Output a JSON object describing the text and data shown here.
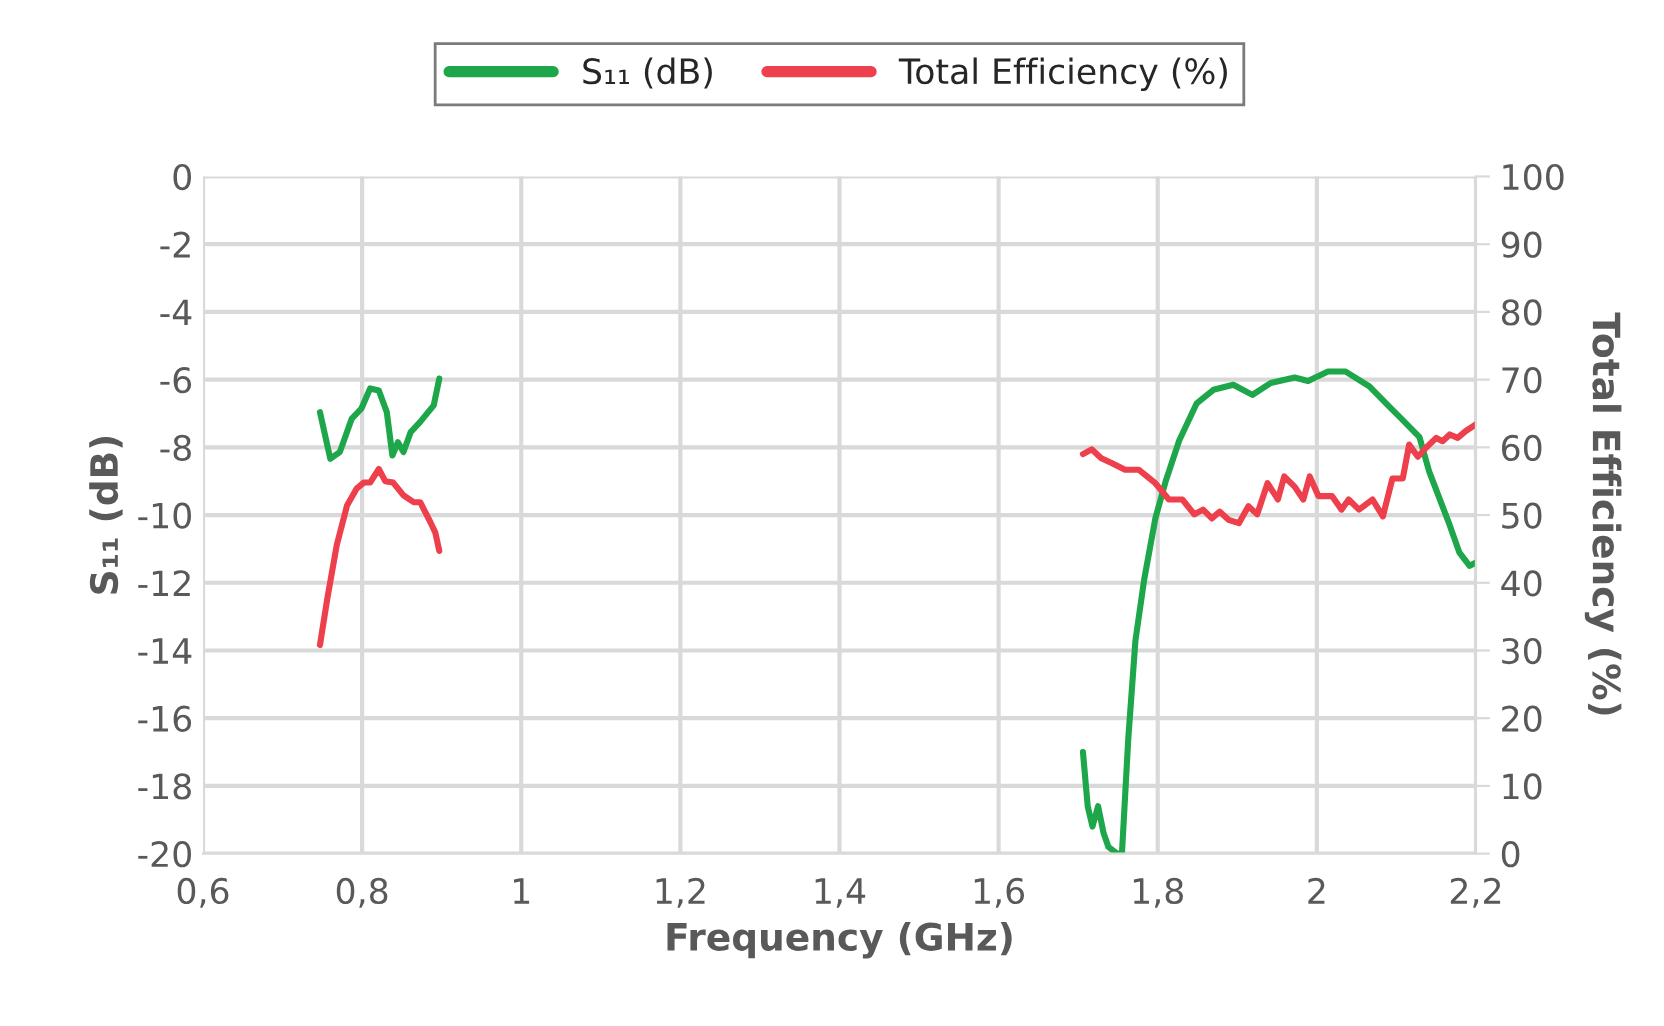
{
  "chart_data": {
    "type": "line",
    "xlabel": "Frequency (GHz)",
    "ylabel": "S₁₁ (dB)",
    "y2label": "Total Efficiency (%)",
    "xlim": [
      0.6,
      2.2
    ],
    "xticks": [
      {
        "value": 0.6,
        "label": "0,6"
      },
      {
        "value": 0.8,
        "label": "0,8"
      },
      1,
      {
        "value": 1.2,
        "label": "1,2"
      },
      {
        "value": 1.4,
        "label": "1,4"
      },
      {
        "value": 1.6,
        "label": "1,6"
      },
      {
        "value": 1.8,
        "label": "1,8"
      },
      2,
      {
        "value": 2.2,
        "label": "2,2"
      }
    ],
    "ylim": [
      -20,
      0
    ],
    "yticks": [
      -20,
      -18,
      -16,
      -14,
      -12,
      -10,
      -8,
      -6,
      -4,
      -2,
      0
    ],
    "y2lim": [
      0,
      100
    ],
    "y2ticks": [
      0,
      10,
      20,
      30,
      40,
      50,
      60,
      70,
      80,
      90,
      100
    ],
    "grid": true,
    "legend": "top",
    "marker": "none",
    "line_style": "solid",
    "series": [
      {
        "name": "S₁₁ (dB)",
        "color": "#1ea64b",
        "x": [
          0.747,
          0.76,
          0.772,
          0.787,
          0.799,
          0.81,
          0.821,
          0.831,
          0.838,
          0.845,
          0.852,
          0.861,
          0.873,
          0.883,
          0.89,
          0.897,
          null,
          1.706,
          1.712,
          1.718,
          1.725,
          1.732,
          1.738,
          1.749,
          1.755,
          1.763,
          1.772,
          1.783,
          1.797,
          1.81,
          1.827,
          1.849,
          1.87,
          1.895,
          1.919,
          1.942,
          1.972,
          1.989,
          2.014,
          2.036,
          2.066,
          2.091,
          2.104,
          2.129,
          2.141,
          2.154,
          2.167,
          2.179,
          2.192,
          2.2
        ],
        "values": [
          -6.96,
          -8.34,
          -8.14,
          -7.15,
          -6.86,
          -6.26,
          -6.32,
          -6.96,
          -8.24,
          -7.85,
          -8.14,
          -7.55,
          -7.25,
          -6.96,
          -6.76,
          -5.97,
          null,
          -17.0,
          -18.6,
          -19.2,
          -18.6,
          -19.4,
          -19.8,
          -20.0,
          -20.0,
          -16.6,
          -13.7,
          -11.9,
          -10.1,
          -9.0,
          -7.8,
          -6.7,
          -6.3,
          -6.15,
          -6.45,
          -6.1,
          -5.94,
          -6.04,
          -5.76,
          -5.76,
          -6.2,
          -6.8,
          -7.1,
          -7.7,
          -8.7,
          -9.5,
          -10.3,
          -11.1,
          -11.5,
          -11.4
        ]
      },
      {
        "name": "Total Efficiency (%)",
        "color": "#ee3f4d",
        "axis": "y2",
        "x": [
          0.747,
          0.756,
          0.768,
          0.781,
          0.793,
          0.802,
          0.81,
          0.821,
          0.829,
          0.839,
          0.852,
          0.865,
          0.873,
          0.886,
          0.892,
          0.897,
          null,
          1.706,
          1.717,
          1.729,
          1.742,
          1.759,
          1.776,
          1.797,
          1.814,
          1.831,
          1.846,
          1.857,
          1.868,
          1.878,
          1.889,
          1.902,
          1.914,
          1.925,
          1.938,
          1.951,
          1.959,
          1.972,
          1.983,
          1.991,
          2.002,
          2.019,
          2.031,
          2.04,
          2.053,
          2.07,
          2.083,
          2.095,
          2.108,
          2.116,
          2.127,
          2.137,
          2.15,
          2.158,
          2.167,
          2.177,
          2.187,
          2.2
        ],
        "values": [
          30.8,
          37.5,
          45.5,
          51.4,
          53.9,
          54.8,
          54.8,
          56.8,
          55.0,
          54.8,
          52.9,
          51.9,
          51.9,
          48.9,
          47.4,
          44.7,
          null,
          59.0,
          59.7,
          58.4,
          57.7,
          56.7,
          56.7,
          54.7,
          52.3,
          52.3,
          50.1,
          50.8,
          49.5,
          50.5,
          49.3,
          48.8,
          51.3,
          50.1,
          54.7,
          52.3,
          55.7,
          54.2,
          52.3,
          55.7,
          52.8,
          52.8,
          50.8,
          52.3,
          50.8,
          52.3,
          49.8,
          55.4,
          55.4,
          60.4,
          58.6,
          59.9,
          61.4,
          60.9,
          61.9,
          61.4,
          62.4,
          63.4
        ]
      }
    ]
  }
}
